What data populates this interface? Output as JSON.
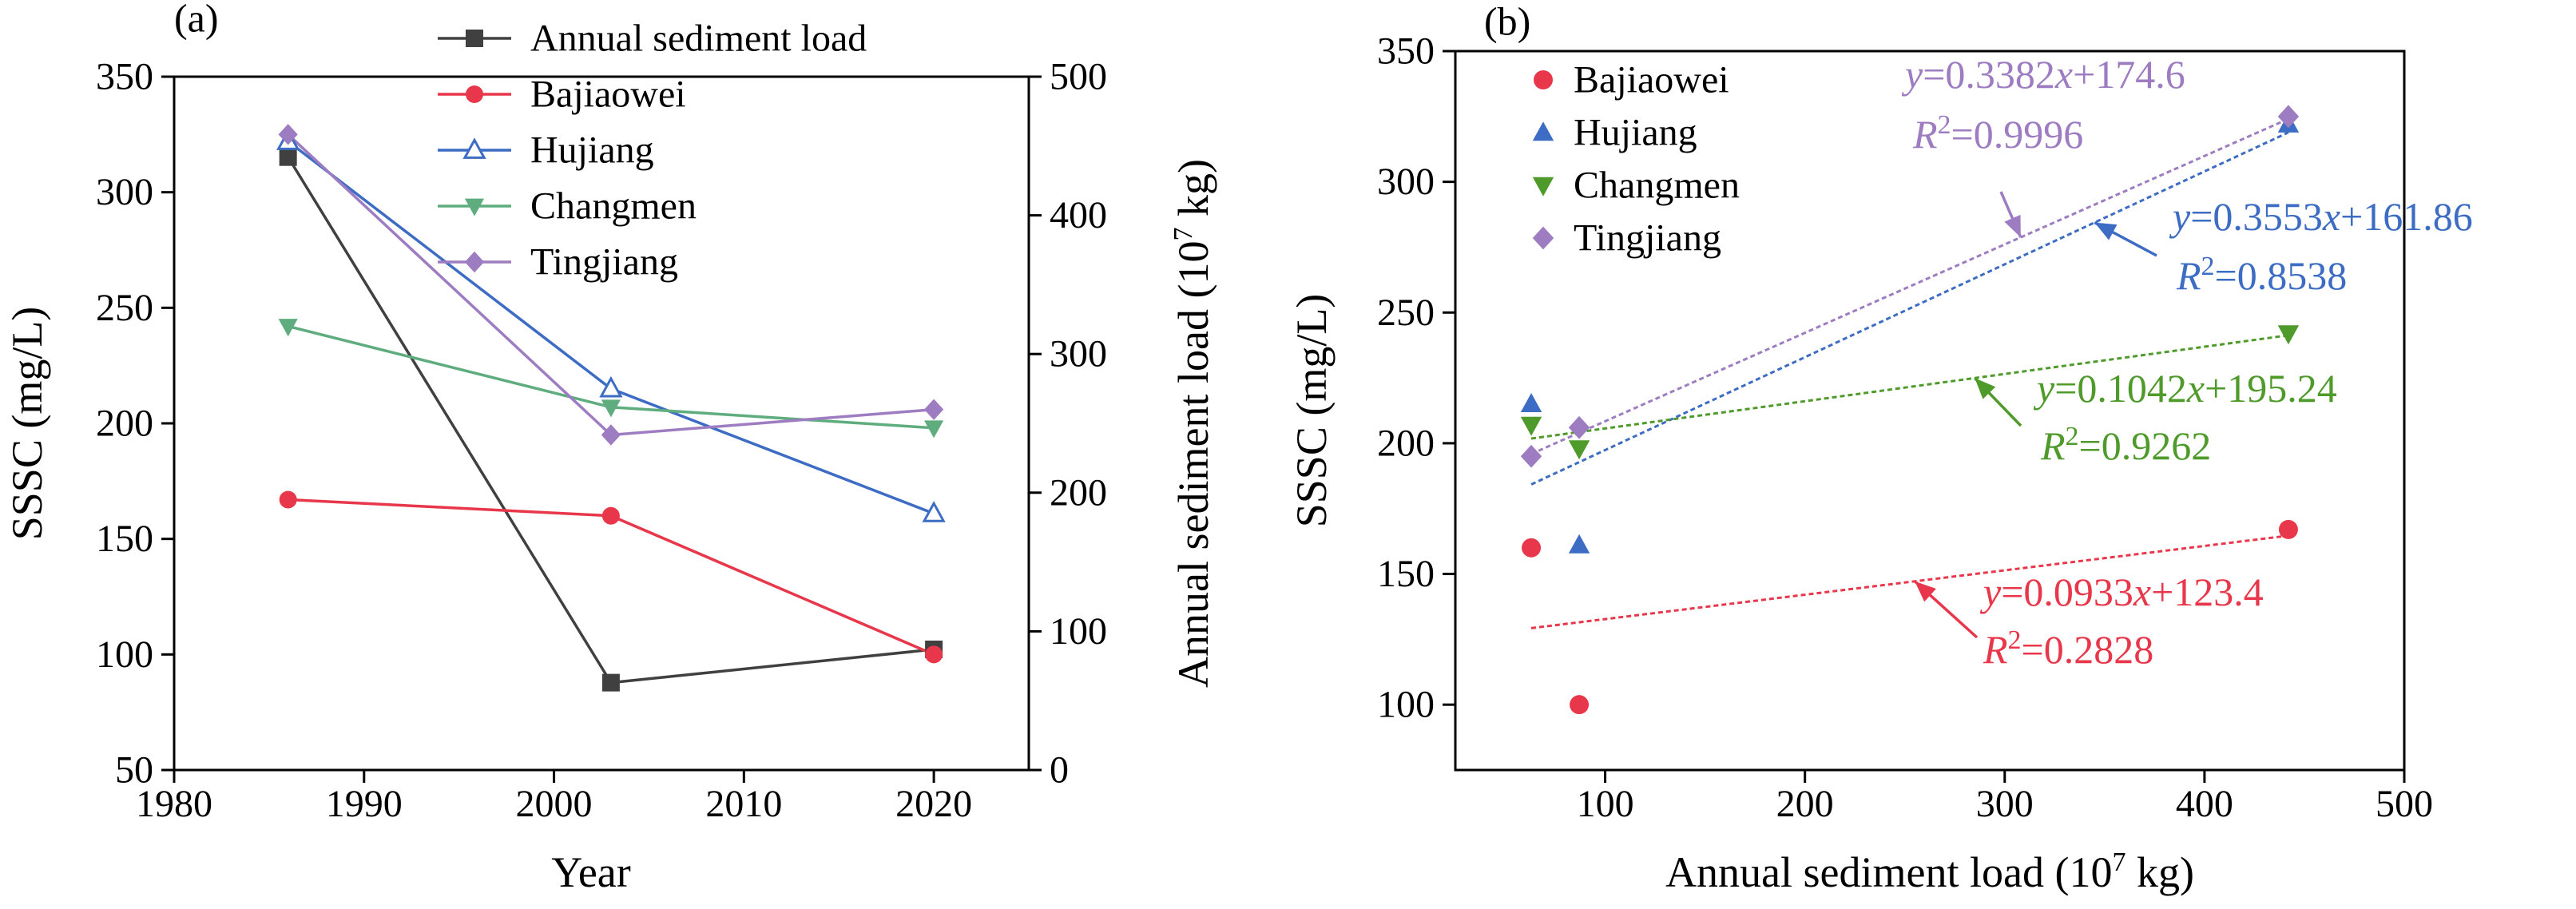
{
  "chart_data": [
    {
      "type": "line",
      "panel_label": "(a)",
      "xlabel": "Year",
      "ylabel": "SSSC (mg/L)",
      "y2label": "Annual sediment load (10",
      "y2label_sup": "7",
      "y2label_end": " kg)",
      "xlim": [
        1980,
        2025
      ],
      "ylim": [
        50,
        350
      ],
      "y2lim": [
        0,
        500
      ],
      "x_ticks": [
        "1980",
        "1990",
        "2000",
        "2010",
        "2020"
      ],
      "y_ticks": [
        "50",
        "100",
        "150",
        "200",
        "250",
        "300",
        "350"
      ],
      "y2_ticks": [
        "0",
        "100",
        "200",
        "300",
        "400",
        "500"
      ],
      "x": [
        1986,
        2003,
        2020
      ],
      "series": [
        {
          "name": "Annual sediment load",
          "axis": "right",
          "values": [
            442,
            63,
            87
          ],
          "color": "#404040",
          "marker": "square"
        },
        {
          "name": "Bajiaowei",
          "axis": "left",
          "values": [
            167,
            160,
            100
          ],
          "color": "#e8374a",
          "marker": "circle"
        },
        {
          "name": "Hujiang",
          "axis": "left",
          "values": [
            322,
            215,
            161
          ],
          "color": "#3d6cc4",
          "marker": "triangle-open"
        },
        {
          "name": "Changmen",
          "axis": "left",
          "values": [
            242,
            207,
            198
          ],
          "color": "#5fad7f",
          "marker": "triangle-down"
        },
        {
          "name": "Tingjiang",
          "axis": "left",
          "values": [
            325,
            195,
            206
          ],
          "color": "#9d7cc2",
          "marker": "diamond"
        }
      ]
    },
    {
      "type": "scatter",
      "panel_label": "(b)",
      "xlabel": "Annual sediment load (10",
      "xlabel_sup": "7",
      "xlabel_end": " kg)",
      "ylabel": "SSSC (mg/L)",
      "xlim": [
        25,
        500
      ],
      "ylim": [
        75,
        350
      ],
      "x_ticks": [
        "100",
        "200",
        "300",
        "400",
        "500"
      ],
      "y_ticks": [
        "100",
        "150",
        "200",
        "250",
        "300",
        "350"
      ],
      "series": [
        {
          "name": "Bajiaowei",
          "color": "#e8374a",
          "marker": "circle",
          "x": [
            63,
            87,
            442
          ],
          "y": [
            160,
            100,
            167
          ],
          "fit": {
            "slope": 0.0933,
            "intercept": 123.4,
            "eq": "=0.0933",
            "eq_tail": "+123.4",
            "r2": "=0.2828"
          }
        },
        {
          "name": "Hujiang",
          "color": "#3d6cc4",
          "marker": "triangle",
          "x": [
            63,
            87,
            442
          ],
          "y": [
            215,
            161,
            322
          ],
          "fit": {
            "slope": 0.3553,
            "intercept": 161.86,
            "eq": "=0.3553",
            "eq_tail": "+161.86",
            "r2": "=0.8538"
          }
        },
        {
          "name": "Changmen",
          "color": "#4e9a2a",
          "marker": "triangle-down",
          "x": [
            63,
            87,
            442
          ],
          "y": [
            207,
            198,
            242
          ],
          "fit": {
            "slope": 0.1042,
            "intercept": 195.24,
            "eq": "=0.1042",
            "eq_tail": "+195.24",
            "r2": "=0.9262"
          }
        },
        {
          "name": "Tingjiang",
          "color": "#9d7cc2",
          "marker": "diamond",
          "x": [
            63,
            87,
            442
          ],
          "y": [
            195,
            206,
            325
          ],
          "fit": {
            "slope": 0.3382,
            "intercept": 174.6,
            "eq": "=0.3382",
            "eq_tail": "+174.6",
            "r2": "=0.9996"
          }
        }
      ]
    }
  ]
}
